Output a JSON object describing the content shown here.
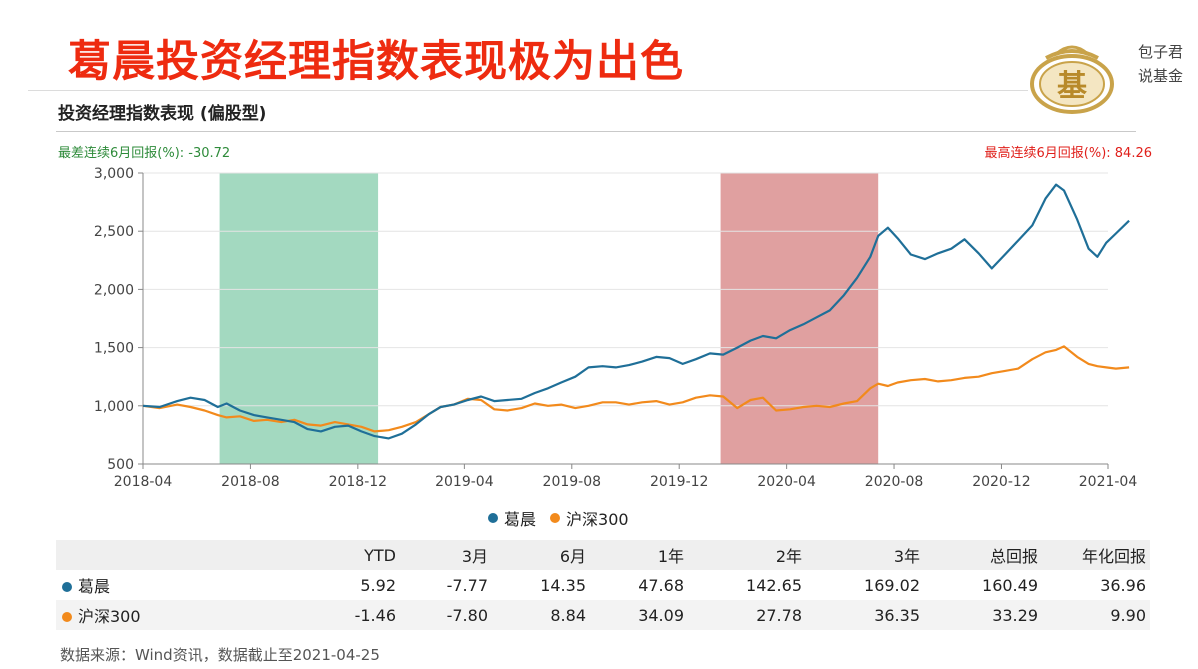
{
  "headline": "葛晨投资经理指数表现极为出色",
  "brand": {
    "line1": "包子君",
    "line2": "说基金",
    "logo_char": "基"
  },
  "chart_title": "投资经理指数表现 (偏股型)",
  "note_worst": "最差连续6月回报(%): -30.72",
  "note_best": "最高连续6月回报(%): 84.26",
  "colors": {
    "gechen": "#1f6f98",
    "hs300": "#f28a1c",
    "worst_band": "#a3d9c0",
    "best_band": "#e0a0a0"
  },
  "chart_data": {
    "type": "line",
    "title": "投资经理指数表现 (偏股型)",
    "x_ticks": [
      "2018-04",
      "2018-08",
      "2018-12",
      "2019-04",
      "2019-08",
      "2019-12",
      "2020-04",
      "2020-08",
      "2020-12",
      "2021-04"
    ],
    "y_ticks": [
      "500",
      "1,000",
      "1,500",
      "2,000",
      "2,500",
      "3,000"
    ],
    "ylim": [
      500,
      3000
    ],
    "xlim": [
      "2018-04",
      "2021-04"
    ],
    "shaded_periods": [
      {
        "label": "最差连续6月",
        "start": "2018-06-27",
        "end": "2018-12-24"
      },
      {
        "label": "最高连续6月",
        "start": "2020-01-17",
        "end": "2020-07-14"
      }
    ],
    "series": [
      {
        "name": "葛晨",
        "points": [
          [
            "2018-04-01",
            1000
          ],
          [
            "2018-04-20",
            990
          ],
          [
            "2018-05-10",
            1040
          ],
          [
            "2018-05-25",
            1070
          ],
          [
            "2018-06-10",
            1050
          ],
          [
            "2018-06-25",
            990
          ],
          [
            "2018-07-05",
            1020
          ],
          [
            "2018-07-20",
            960
          ],
          [
            "2018-08-05",
            920
          ],
          [
            "2018-08-20",
            900
          ],
          [
            "2018-09-05",
            880
          ],
          [
            "2018-09-20",
            860
          ],
          [
            "2018-10-05",
            800
          ],
          [
            "2018-10-20",
            780
          ],
          [
            "2018-11-05",
            820
          ],
          [
            "2018-11-20",
            830
          ],
          [
            "2018-12-05",
            780
          ],
          [
            "2018-12-20",
            740
          ],
          [
            "2019-01-05",
            720
          ],
          [
            "2019-01-20",
            760
          ],
          [
            "2019-02-05",
            840
          ],
          [
            "2019-02-20",
            930
          ],
          [
            "2019-03-05",
            990
          ],
          [
            "2019-03-20",
            1010
          ],
          [
            "2019-04-05",
            1050
          ],
          [
            "2019-04-20",
            1080
          ],
          [
            "2019-05-05",
            1040
          ],
          [
            "2019-05-20",
            1050
          ],
          [
            "2019-06-05",
            1060
          ],
          [
            "2019-06-20",
            1110
          ],
          [
            "2019-07-05",
            1150
          ],
          [
            "2019-07-20",
            1200
          ],
          [
            "2019-08-05",
            1250
          ],
          [
            "2019-08-20",
            1330
          ],
          [
            "2019-09-05",
            1340
          ],
          [
            "2019-09-20",
            1330
          ],
          [
            "2019-10-05",
            1350
          ],
          [
            "2019-10-20",
            1380
          ],
          [
            "2019-11-05",
            1420
          ],
          [
            "2019-11-20",
            1410
          ],
          [
            "2019-12-05",
            1360
          ],
          [
            "2019-12-20",
            1400
          ],
          [
            "2020-01-05",
            1450
          ],
          [
            "2020-01-20",
            1440
          ],
          [
            "2020-02-05",
            1500
          ],
          [
            "2020-02-20",
            1560
          ],
          [
            "2020-03-05",
            1600
          ],
          [
            "2020-03-20",
            1580
          ],
          [
            "2020-04-05",
            1650
          ],
          [
            "2020-04-20",
            1700
          ],
          [
            "2020-05-05",
            1760
          ],
          [
            "2020-05-20",
            1820
          ],
          [
            "2020-06-05",
            1950
          ],
          [
            "2020-06-20",
            2100
          ],
          [
            "2020-07-05",
            2280
          ],
          [
            "2020-07-14",
            2460
          ],
          [
            "2020-07-25",
            2530
          ],
          [
            "2020-08-05",
            2440
          ],
          [
            "2020-08-20",
            2300
          ],
          [
            "2020-09-05",
            2260
          ],
          [
            "2020-09-20",
            2310
          ],
          [
            "2020-10-05",
            2350
          ],
          [
            "2020-10-20",
            2430
          ],
          [
            "2020-11-05",
            2310
          ],
          [
            "2020-11-20",
            2180
          ],
          [
            "2020-12-05",
            2300
          ],
          [
            "2020-12-20",
            2420
          ],
          [
            "2021-01-05",
            2550
          ],
          [
            "2021-01-20",
            2780
          ],
          [
            "2021-02-01",
            2900
          ],
          [
            "2021-02-10",
            2850
          ],
          [
            "2021-02-25",
            2600
          ],
          [
            "2021-03-10",
            2350
          ],
          [
            "2021-03-20",
            2280
          ],
          [
            "2021-03-30",
            2400
          ],
          [
            "2021-04-10",
            2480
          ],
          [
            "2021-04-25",
            2590
          ]
        ]
      },
      {
        "name": "沪深300",
        "points": [
          [
            "2018-04-01",
            1000
          ],
          [
            "2018-04-20",
            980
          ],
          [
            "2018-05-10",
            1010
          ],
          [
            "2018-05-25",
            990
          ],
          [
            "2018-06-10",
            960
          ],
          [
            "2018-06-25",
            920
          ],
          [
            "2018-07-05",
            900
          ],
          [
            "2018-07-20",
            910
          ],
          [
            "2018-08-05",
            870
          ],
          [
            "2018-08-20",
            880
          ],
          [
            "2018-09-05",
            860
          ],
          [
            "2018-09-20",
            880
          ],
          [
            "2018-10-05",
            840
          ],
          [
            "2018-10-20",
            830
          ],
          [
            "2018-11-05",
            860
          ],
          [
            "2018-11-20",
            840
          ],
          [
            "2018-12-05",
            820
          ],
          [
            "2018-12-20",
            780
          ],
          [
            "2019-01-05",
            790
          ],
          [
            "2019-01-20",
            820
          ],
          [
            "2019-02-05",
            860
          ],
          [
            "2019-02-20",
            930
          ],
          [
            "2019-03-05",
            990
          ],
          [
            "2019-03-20",
            1010
          ],
          [
            "2019-04-05",
            1060
          ],
          [
            "2019-04-20",
            1050
          ],
          [
            "2019-05-05",
            970
          ],
          [
            "2019-05-20",
            960
          ],
          [
            "2019-06-05",
            980
          ],
          [
            "2019-06-20",
            1020
          ],
          [
            "2019-07-05",
            1000
          ],
          [
            "2019-07-20",
            1010
          ],
          [
            "2019-08-05",
            980
          ],
          [
            "2019-08-20",
            1000
          ],
          [
            "2019-09-05",
            1030
          ],
          [
            "2019-09-20",
            1030
          ],
          [
            "2019-10-05",
            1010
          ],
          [
            "2019-10-20",
            1030
          ],
          [
            "2019-11-05",
            1040
          ],
          [
            "2019-11-20",
            1010
          ],
          [
            "2019-12-05",
            1030
          ],
          [
            "2019-12-20",
            1070
          ],
          [
            "2020-01-05",
            1090
          ],
          [
            "2020-01-20",
            1080
          ],
          [
            "2020-02-05",
            980
          ],
          [
            "2020-02-20",
            1050
          ],
          [
            "2020-03-05",
            1070
          ],
          [
            "2020-03-20",
            960
          ],
          [
            "2020-04-05",
            970
          ],
          [
            "2020-04-20",
            990
          ],
          [
            "2020-05-05",
            1000
          ],
          [
            "2020-05-20",
            990
          ],
          [
            "2020-06-05",
            1020
          ],
          [
            "2020-06-20",
            1040
          ],
          [
            "2020-07-05",
            1150
          ],
          [
            "2020-07-14",
            1190
          ],
          [
            "2020-07-25",
            1170
          ],
          [
            "2020-08-05",
            1200
          ],
          [
            "2020-08-20",
            1220
          ],
          [
            "2020-09-05",
            1230
          ],
          [
            "2020-09-20",
            1210
          ],
          [
            "2020-10-05",
            1220
          ],
          [
            "2020-10-20",
            1240
          ],
          [
            "2020-11-05",
            1250
          ],
          [
            "2020-11-20",
            1280
          ],
          [
            "2020-12-05",
            1300
          ],
          [
            "2020-12-20",
            1320
          ],
          [
            "2021-01-05",
            1400
          ],
          [
            "2021-01-20",
            1460
          ],
          [
            "2021-02-01",
            1480
          ],
          [
            "2021-02-10",
            1510
          ],
          [
            "2021-02-25",
            1420
          ],
          [
            "2021-03-10",
            1360
          ],
          [
            "2021-03-20",
            1340
          ],
          [
            "2021-03-30",
            1330
          ],
          [
            "2021-04-10",
            1320
          ],
          [
            "2021-04-25",
            1330
          ]
        ]
      }
    ]
  },
  "legend": [
    {
      "name": "葛晨",
      "color": "#1f6f98"
    },
    {
      "name": "沪深300",
      "color": "#f28a1c"
    }
  ],
  "table": {
    "headers": [
      "",
      "YTD",
      "3月",
      "6月",
      "1年",
      "2年",
      "3年",
      "总回报",
      "年化回报"
    ],
    "rows": [
      {
        "name": "葛晨",
        "color": "#1f6f98",
        "values": [
          "5.92",
          "-7.77",
          "14.35",
          "47.68",
          "142.65",
          "169.02",
          "160.49",
          "36.96"
        ]
      },
      {
        "name": "沪深300",
        "color": "#f28a1c",
        "values": [
          "-1.46",
          "-7.80",
          "8.84",
          "34.09",
          "27.78",
          "36.35",
          "33.29",
          "9.90"
        ]
      }
    ]
  },
  "source": "数据来源：Wind资讯，数据截止至2021-04-25"
}
